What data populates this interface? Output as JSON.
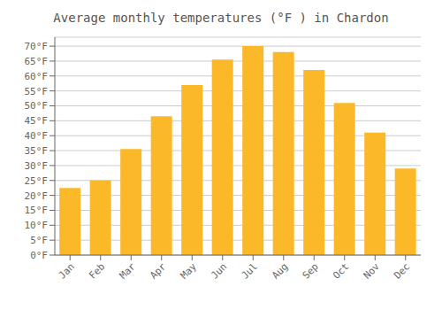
{
  "chart_data": {
    "type": "bar",
    "title": "Average monthly temperatures (°F ) in Chardon",
    "categories": [
      "Jan",
      "Feb",
      "Mar",
      "Apr",
      "May",
      "Jun",
      "Jul",
      "Aug",
      "Sep",
      "Oct",
      "Nov",
      "Dec"
    ],
    "values": [
      22.5,
      25.0,
      35.5,
      46.5,
      57.0,
      65.5,
      70.0,
      68.0,
      62.0,
      51.0,
      41.0,
      29.0
    ],
    "color": "#FBB829",
    "ylim": [
      0,
      73
    ],
    "yticks": [
      {
        "value": 0,
        "label": "0°F"
      },
      {
        "value": 5,
        "label": "5°F"
      },
      {
        "value": 10,
        "label": "10°F"
      },
      {
        "value": 15,
        "label": "15°F"
      },
      {
        "value": 20,
        "label": "20°F"
      },
      {
        "value": 25,
        "label": "25°F"
      },
      {
        "value": 30,
        "label": "30°F"
      },
      {
        "value": 35,
        "label": "35°F"
      },
      {
        "value": 40,
        "label": "40°F"
      },
      {
        "value": 45,
        "label": "45°F"
      },
      {
        "value": 50,
        "label": "50°F"
      },
      {
        "value": 55,
        "label": "55°F"
      },
      {
        "value": 60,
        "label": "60°F"
      },
      {
        "value": 65,
        "label": "65°F"
      },
      {
        "value": 70,
        "label": "70°F"
      }
    ],
    "grid": true
  }
}
